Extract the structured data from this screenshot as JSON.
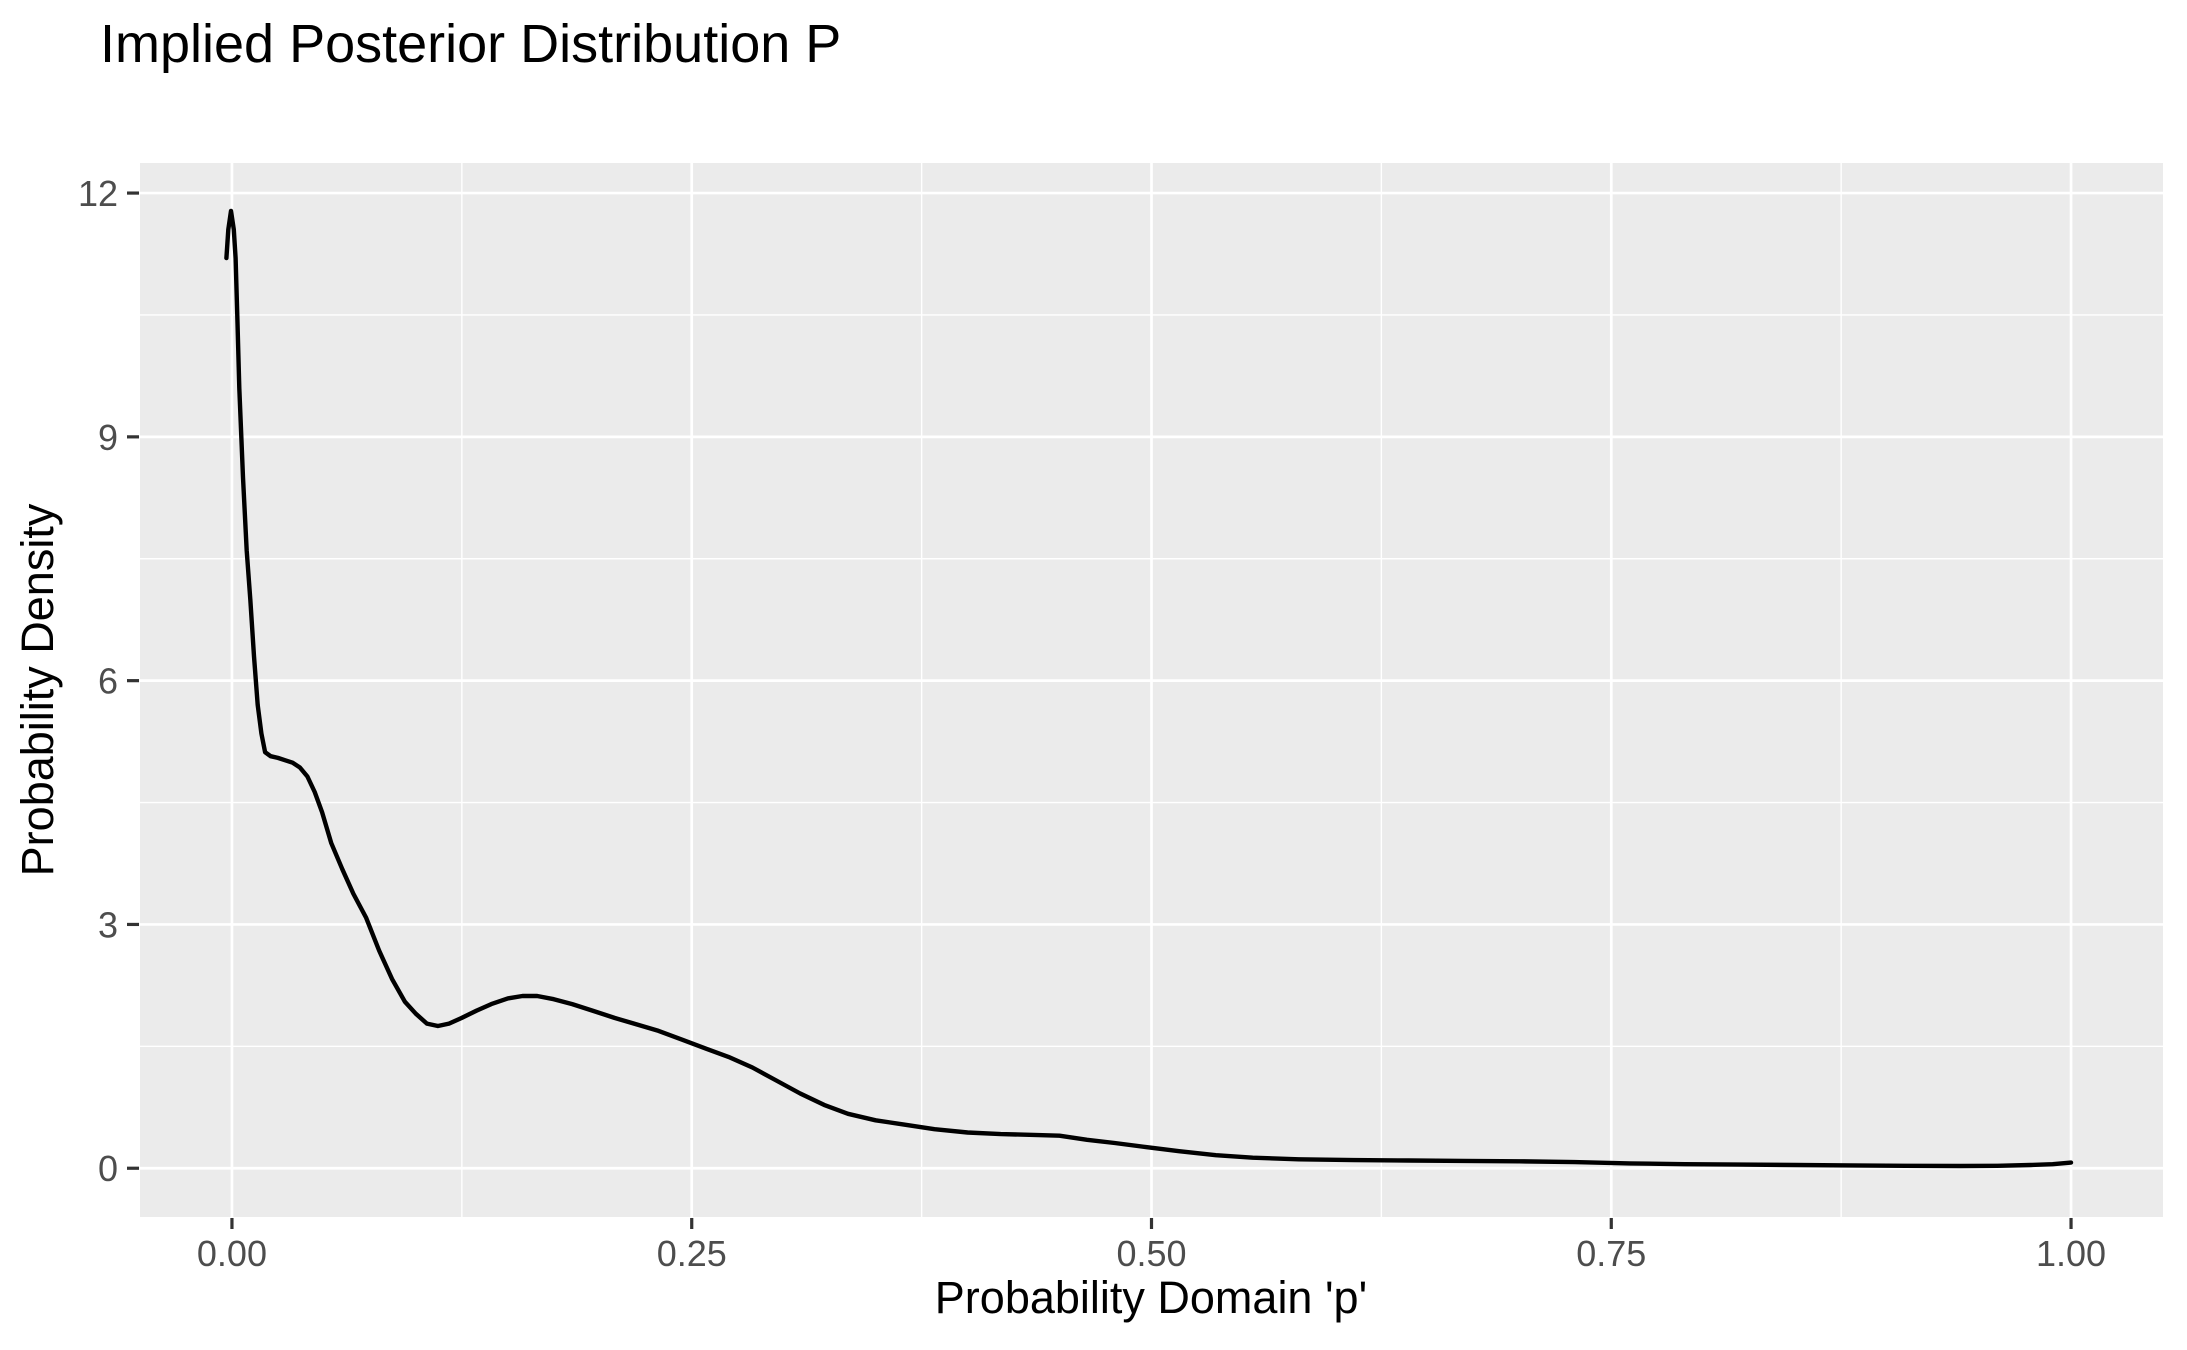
{
  "chart_data": {
    "type": "line",
    "subtype": "density-curve",
    "title": "Implied Posterior Distribution P",
    "xlabel": "Probability Domain 'p'",
    "ylabel": "Probability Density",
    "legend": "none",
    "grid": true,
    "xlim": [
      -0.05,
      1.05
    ],
    "ylim": [
      -0.6,
      12.37
    ],
    "x_ticks": {
      "values": [
        0,
        0.25,
        0.5,
        0.75,
        1.0
      ],
      "labels": [
        "0.00",
        "0.25",
        "0.50",
        "0.75",
        "1.00"
      ]
    },
    "y_ticks": {
      "values": [
        0,
        3,
        6,
        9,
        12
      ],
      "labels": [
        "0",
        "3",
        "6",
        "9",
        "12"
      ]
    },
    "x_minor_gridlines": [
      0.125,
      0.375,
      0.625,
      0.875
    ],
    "y_minor_gridlines": [
      1.5,
      4.5,
      7.5,
      10.5
    ],
    "series": [
      {
        "name": "posterior-density",
        "color": "#000000",
        "x": [
          -0.003,
          -0.002,
          -0.0005,
          0.001,
          0.002,
          0.003,
          0.004,
          0.006,
          0.008,
          0.01,
          0.012,
          0.014,
          0.016,
          0.018,
          0.021,
          0.025,
          0.029,
          0.033,
          0.037,
          0.041,
          0.045,
          0.049,
          0.054,
          0.06,
          0.066,
          0.073,
          0.08,
          0.087,
          0.094,
          0.1,
          0.106,
          0.112,
          0.118,
          0.125,
          0.133,
          0.141,
          0.15,
          0.158,
          0.166,
          0.175,
          0.185,
          0.196,
          0.208,
          0.22,
          0.232,
          0.245,
          0.258,
          0.27,
          0.283,
          0.296,
          0.309,
          0.322,
          0.335,
          0.35,
          0.365,
          0.382,
          0.4,
          0.418,
          0.436,
          0.45,
          0.465,
          0.48,
          0.497,
          0.515,
          0.535,
          0.555,
          0.58,
          0.61,
          0.64,
          0.67,
          0.7,
          0.73,
          0.76,
          0.79,
          0.82,
          0.85,
          0.88,
          0.91,
          0.94,
          0.96,
          0.978,
          0.99,
          1.0
        ],
        "y": [
          11.2,
          11.55,
          11.78,
          11.55,
          11.2,
          10.4,
          9.6,
          8.5,
          7.6,
          7.0,
          6.3,
          5.7,
          5.35,
          5.12,
          5.07,
          5.05,
          5.02,
          4.99,
          4.93,
          4.82,
          4.63,
          4.38,
          4.0,
          3.68,
          3.38,
          3.08,
          2.68,
          2.33,
          2.05,
          1.9,
          1.78,
          1.75,
          1.78,
          1.85,
          1.94,
          2.02,
          2.09,
          2.12,
          2.12,
          2.08,
          2.02,
          1.94,
          1.85,
          1.77,
          1.69,
          1.58,
          1.47,
          1.37,
          1.24,
          1.08,
          0.92,
          0.78,
          0.67,
          0.59,
          0.54,
          0.48,
          0.44,
          0.42,
          0.41,
          0.4,
          0.35,
          0.31,
          0.26,
          0.21,
          0.16,
          0.13,
          0.11,
          0.1,
          0.095,
          0.09,
          0.085,
          0.075,
          0.06,
          0.05,
          0.045,
          0.04,
          0.035,
          0.03,
          0.027,
          0.03,
          0.04,
          0.05,
          0.07
        ]
      }
    ],
    "colors": {
      "page_bg": "#FFFFFF",
      "panel_bg": "#EBEBEB",
      "gridline": "#FFFFFF",
      "curve": "#000000",
      "tick_mark": "#333333",
      "tick_text": "#4D4D4D",
      "title_text": "#000000"
    }
  }
}
